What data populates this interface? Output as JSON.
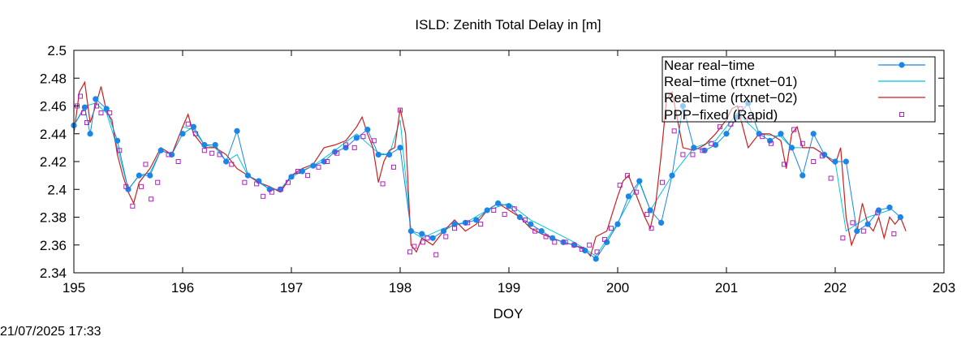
{
  "footer": {
    "timestamp": "21/07/2025 17:33"
  },
  "chart_data": {
    "type": "line",
    "title": "ISLD: Zenith Total Delay in [m]",
    "xlabel": "DOY",
    "ylabel": "",
    "xlim": [
      195,
      203
    ],
    "ylim": [
      2.34,
      2.5
    ],
    "x_ticks": [
      "195",
      "196",
      "197",
      "198",
      "199",
      "200",
      "201",
      "202",
      "203"
    ],
    "y_ticks": [
      "2.34",
      "2.36",
      "2.38",
      "2.4",
      "2.42",
      "2.44",
      "2.46",
      "2.48",
      "2.5"
    ],
    "grid": false,
    "legend_position": "top-right",
    "colors": {
      "near_real_time": "#1a86e8",
      "rtxnet_01": "#00c8d8",
      "rtxnet_02": "#cc1f1f",
      "ppp_fixed": "#b020c0"
    },
    "series": [
      {
        "name": "Near real−time",
        "style": "line-points",
        "x": [
          195.0,
          195.1,
          195.15,
          195.2,
          195.3,
          195.4,
          195.5,
          195.6,
          195.7,
          195.8,
          195.9,
          196.0,
          196.1,
          196.2,
          196.3,
          196.4,
          196.5,
          196.6,
          196.7,
          196.8,
          196.9,
          197.0,
          197.1,
          197.2,
          197.3,
          197.4,
          197.5,
          197.6,
          197.7,
          197.8,
          197.9,
          198.0,
          198.1,
          198.2,
          198.3,
          198.4,
          198.5,
          198.6,
          198.7,
          198.8,
          198.9,
          199.0,
          199.1,
          199.2,
          199.3,
          199.4,
          199.5,
          199.6,
          199.7,
          199.8,
          199.9,
          200.0,
          200.1,
          200.2,
          200.3,
          200.4,
          200.5,
          200.6,
          200.7,
          200.8,
          200.9,
          201.0,
          201.1,
          201.2,
          201.3,
          201.4,
          201.5,
          201.6,
          201.7,
          201.8,
          201.9,
          202.0,
          202.1,
          202.2,
          202.3,
          202.4,
          202.5,
          202.6
        ],
        "y": [
          2.446,
          2.459,
          2.44,
          2.465,
          2.458,
          2.435,
          2.4,
          2.41,
          2.41,
          2.428,
          2.425,
          2.44,
          2.445,
          2.432,
          2.432,
          2.42,
          2.442,
          2.41,
          2.406,
          2.4,
          2.4,
          2.409,
          2.413,
          2.417,
          2.42,
          2.427,
          2.43,
          2.437,
          2.443,
          2.425,
          2.425,
          2.43,
          2.37,
          2.368,
          2.365,
          2.37,
          2.375,
          2.376,
          2.378,
          2.385,
          2.39,
          2.388,
          2.38,
          2.375,
          2.37,
          2.365,
          2.362,
          2.36,
          2.356,
          2.35,
          2.362,
          2.375,
          2.395,
          2.406,
          2.385,
          2.376,
          2.41,
          2.46,
          2.43,
          2.428,
          2.432,
          2.44,
          2.452,
          2.462,
          2.44,
          2.435,
          2.44,
          2.43,
          2.41,
          2.44,
          2.425,
          2.42,
          2.42,
          2.37,
          2.375,
          2.385,
          2.387,
          2.38
        ]
      },
      {
        "name": "Real−time (rtxnet−01)",
        "style": "line",
        "x": [
          195.0,
          195.1,
          195.2,
          195.3,
          195.4,
          195.5,
          195.6,
          195.7,
          195.8,
          195.9,
          196.0,
          196.1,
          196.2,
          196.3,
          196.4,
          196.5,
          196.6,
          196.7,
          196.8,
          196.9,
          197.0,
          197.2,
          197.4,
          197.6,
          197.8,
          197.9,
          198.0,
          198.1,
          198.2,
          198.4,
          198.6,
          198.8,
          199.0,
          199.2,
          199.4,
          199.6,
          199.8,
          200.0,
          200.2,
          200.3,
          200.5,
          200.7,
          200.9,
          201.1,
          201.3,
          201.5,
          201.6,
          201.8,
          202.0,
          202.1,
          202.3,
          202.5
        ],
        "y": [
          2.446,
          2.46,
          2.462,
          2.455,
          2.43,
          2.4,
          2.41,
          2.412,
          2.428,
          2.425,
          2.445,
          2.443,
          2.432,
          2.43,
          2.42,
          2.425,
          2.41,
          2.405,
          2.4,
          2.4,
          2.41,
          2.417,
          2.428,
          2.44,
          2.426,
          2.425,
          2.45,
          2.37,
          2.365,
          2.372,
          2.376,
          2.385,
          2.39,
          2.378,
          2.37,
          2.362,
          2.352,
          2.376,
          2.405,
          2.385,
          2.41,
          2.43,
          2.435,
          2.455,
          2.44,
          2.438,
          2.43,
          2.43,
          2.42,
          2.37,
          2.38,
          2.385
        ]
      },
      {
        "name": "Real−time (rtxnet−02)",
        "style": "line",
        "x": [
          195.0,
          195.05,
          195.1,
          195.15,
          195.2,
          195.25,
          195.3,
          195.35,
          195.4,
          195.45,
          195.5,
          195.55,
          195.6,
          195.7,
          195.8,
          195.9,
          196.0,
          196.05,
          196.1,
          196.2,
          196.3,
          196.4,
          196.5,
          196.6,
          196.7,
          196.8,
          196.9,
          197.0,
          197.1,
          197.2,
          197.3,
          197.4,
          197.5,
          197.6,
          197.65,
          197.7,
          197.75,
          197.8,
          197.85,
          197.9,
          197.95,
          198.0,
          198.05,
          198.1,
          198.15,
          198.2,
          198.3,
          198.4,
          198.5,
          198.6,
          198.7,
          198.8,
          198.9,
          199.0,
          199.1,
          199.2,
          199.3,
          199.4,
          199.5,
          199.6,
          199.7,
          199.75,
          199.8,
          199.9,
          200.0,
          200.05,
          200.1,
          200.15,
          200.2,
          200.25,
          200.3,
          200.35,
          200.4,
          200.45,
          200.5,
          200.6,
          200.7,
          200.8,
          200.9,
          201.0,
          201.05,
          201.1,
          201.15,
          201.2,
          201.3,
          201.4,
          201.5,
          201.55,
          201.6,
          201.65,
          201.7,
          201.8,
          201.9,
          202.0,
          202.05,
          202.1,
          202.15,
          202.2,
          202.25,
          202.3,
          202.35,
          202.4,
          202.45,
          202.5,
          202.55,
          202.6,
          202.65
        ],
        "y": [
          2.44,
          2.47,
          2.477,
          2.448,
          2.46,
          2.474,
          2.456,
          2.45,
          2.425,
          2.41,
          2.398,
          2.39,
          2.405,
          2.415,
          2.43,
          2.425,
          2.445,
          2.454,
          2.44,
          2.43,
          2.43,
          2.425,
          2.415,
          2.41,
          2.405,
          2.402,
          2.398,
          2.41,
          2.415,
          2.418,
          2.43,
          2.432,
          2.435,
          2.445,
          2.452,
          2.44,
          2.43,
          2.405,
          2.42,
          2.428,
          2.43,
          2.458,
          2.44,
          2.36,
          2.355,
          2.365,
          2.36,
          2.37,
          2.378,
          2.37,
          2.375,
          2.385,
          2.39,
          2.385,
          2.38,
          2.372,
          2.368,
          2.365,
          2.362,
          2.36,
          2.357,
          2.352,
          2.366,
          2.37,
          2.395,
          2.406,
          2.41,
          2.4,
          2.39,
          2.38,
          2.372,
          2.39,
          2.425,
          2.465,
          2.47,
          2.43,
          2.428,
          2.432,
          2.44,
          2.45,
          2.458,
          2.46,
          2.445,
          2.43,
          2.44,
          2.44,
          2.435,
          2.415,
          2.44,
          2.445,
          2.43,
          2.43,
          2.425,
          2.418,
          2.43,
          2.38,
          2.36,
          2.37,
          2.39,
          2.375,
          2.37,
          2.38,
          2.365,
          2.38,
          2.375,
          2.38,
          2.37
        ]
      },
      {
        "name": "PPP−fixed (Rapid)",
        "style": "points",
        "x": [
          195.03,
          195.06,
          195.09,
          195.12,
          195.21,
          195.25,
          195.33,
          195.42,
          195.48,
          195.54,
          195.62,
          195.66,
          195.71,
          195.77,
          195.87,
          195.96,
          196.05,
          196.12,
          196.2,
          196.27,
          196.34,
          196.45,
          196.57,
          196.68,
          196.74,
          196.82,
          196.9,
          196.97,
          197.06,
          197.15,
          197.25,
          197.33,
          197.42,
          197.5,
          197.58,
          197.66,
          197.76,
          197.84,
          197.94,
          198.0,
          198.09,
          198.13,
          198.21,
          198.25,
          198.33,
          198.42,
          198.5,
          198.62,
          198.74,
          198.86,
          198.96,
          199.05,
          199.15,
          199.24,
          199.34,
          199.42,
          199.52,
          199.6,
          199.67,
          199.74,
          199.81,
          199.88,
          199.94,
          200.02,
          200.09,
          200.17,
          200.27,
          200.31,
          200.41,
          200.52,
          200.6,
          200.69,
          200.78,
          200.86,
          200.94,
          201.04,
          201.13,
          201.21,
          201.33,
          201.41,
          201.53,
          201.62,
          201.7,
          201.8,
          201.88,
          201.96,
          202.07,
          202.16,
          202.26,
          202.39,
          202.54
        ],
        "y": [
          2.46,
          2.467,
          2.455,
          2.448,
          2.46,
          2.455,
          2.455,
          2.428,
          2.402,
          2.388,
          2.402,
          2.418,
          2.393,
          2.405,
          2.425,
          2.42,
          2.447,
          2.44,
          2.428,
          2.426,
          2.425,
          2.418,
          2.405,
          2.404,
          2.395,
          2.398,
          2.4,
          2.405,
          2.413,
          2.41,
          2.416,
          2.42,
          2.426,
          2.432,
          2.43,
          2.438,
          2.435,
          2.404,
          2.416,
          2.457,
          2.355,
          2.359,
          2.362,
          2.365,
          2.353,
          2.366,
          2.372,
          2.376,
          2.375,
          2.385,
          2.382,
          2.386,
          2.378,
          2.37,
          2.366,
          2.362,
          2.362,
          2.36,
          2.357,
          2.36,
          2.355,
          2.364,
          2.372,
          2.403,
          2.41,
          2.398,
          2.382,
          2.372,
          2.405,
          2.442,
          2.425,
          2.425,
          2.428,
          2.433,
          2.445,
          2.447,
          2.458,
          2.45,
          2.438,
          2.433,
          2.418,
          2.443,
          2.433,
          2.42,
          2.424,
          2.408,
          2.365,
          2.376,
          2.37,
          2.383,
          2.368
        ]
      }
    ]
  }
}
